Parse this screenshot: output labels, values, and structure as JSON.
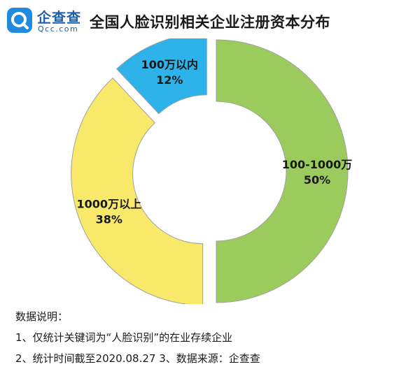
{
  "logo": {
    "name_cn": "企查查",
    "name_en": "Qcc.com",
    "icon": "qcc-logo-icon",
    "color": "#1f5fa8"
  },
  "chart_data": {
    "type": "pie",
    "style": "donut-exploded",
    "title": "全国人脸识别相关企业注册资本分布",
    "categories": [
      "100-1000万",
      "1000万以上",
      "100万以内"
    ],
    "values": [
      50,
      38,
      12
    ],
    "value_labels": [
      "50%",
      "38%",
      "12%"
    ],
    "colors": [
      "#9bcb5c",
      "#f8e96a",
      "#2db2ea"
    ],
    "legend": "none"
  },
  "notes": {
    "heading": "数据说明：",
    "line1": "1、仅统计关键词为“人脸识别”的在业存续企业",
    "line2": "2、统计时间截至2020.08.27   3、数据来源：企查查"
  }
}
